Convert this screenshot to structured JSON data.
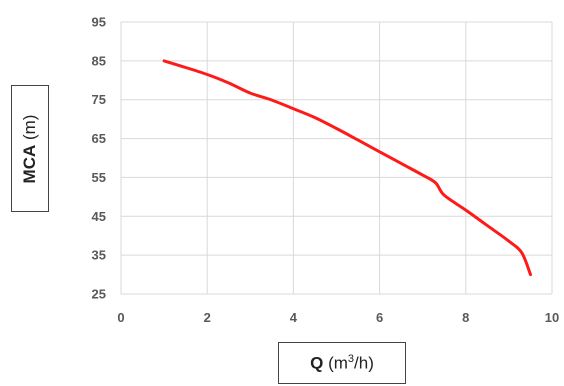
{
  "chart_data": {
    "type": "line",
    "title": "",
    "xlabel": {
      "symbol": "Q",
      "unit_prefix": "(m",
      "unit_sup": "3",
      "unit_suffix": "/h)"
    },
    "ylabel": {
      "symbol": "MCA",
      "unit": "(m)"
    },
    "xlim": [
      0,
      10
    ],
    "ylim": [
      25,
      95
    ],
    "xticks": [
      "0",
      "2",
      "4",
      "6",
      "8",
      "10"
    ],
    "yticks": [
      "95",
      "85",
      "75",
      "65",
      "55",
      "45",
      "35",
      "25"
    ],
    "grid": true,
    "legend": "none",
    "series": [
      {
        "color": "#ff1a1a",
        "x": [
          1.0,
          1.5,
          2.0,
          2.5,
          3.0,
          3.5,
          4.0,
          4.5,
          5.0,
          5.5,
          6.0,
          6.5,
          7.0,
          7.3,
          7.5,
          8.0,
          8.5,
          9.0,
          9.3,
          9.5
        ],
        "y": [
          85.0,
          83.3,
          81.5,
          79.3,
          76.7,
          74.9,
          72.7,
          70.4,
          67.6,
          64.6,
          61.6,
          58.6,
          55.6,
          53.6,
          50.4,
          46.6,
          42.6,
          38.6,
          35.6,
          30.0
        ]
      }
    ]
  },
  "colors": {
    "accent": "#d0021b",
    "grid": "#d9d9d9",
    "tick": "#595959"
  }
}
